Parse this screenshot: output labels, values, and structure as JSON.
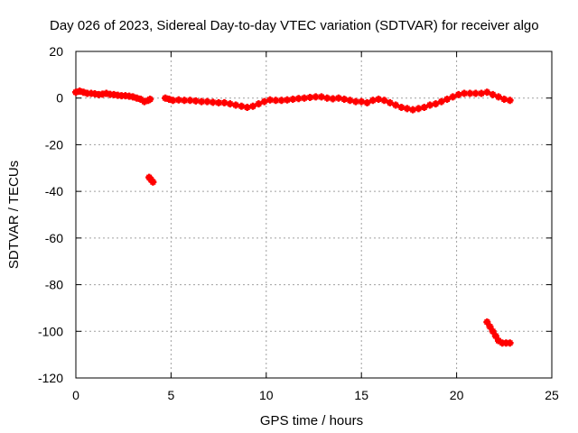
{
  "chart_data": {
    "type": "scatter",
    "title": "Day 026 of 2023, Sidereal Day-to-day VTEC variation (SDTVAR) for receiver algo",
    "xlabel": "GPS time / hours",
    "ylabel": "SDTVAR / TECUs",
    "xlim": [
      0,
      25
    ],
    "ylim": [
      -120,
      20
    ],
    "xticks": [
      0,
      5,
      10,
      15,
      20,
      25
    ],
    "yticks": [
      20,
      0,
      -20,
      -40,
      -60,
      -80,
      -100,
      -120
    ],
    "xtick_labels": [
      "0",
      "5",
      "10",
      "15",
      "20",
      "25"
    ],
    "ytick_labels": [
      "20",
      "0",
      "-20",
      "-40",
      "-60",
      "-80",
      "-100",
      "-120"
    ],
    "grid": true,
    "marker_color": "#ff0000",
    "series": [
      {
        "name": "SDTVAR",
        "points": [
          [
            0.0,
            2.5
          ],
          [
            0.2,
            3.0
          ],
          [
            0.4,
            2.5
          ],
          [
            0.6,
            2.0
          ],
          [
            0.8,
            2.0
          ],
          [
            1.0,
            1.8
          ],
          [
            1.2,
            1.5
          ],
          [
            1.4,
            1.7
          ],
          [
            1.6,
            2.0
          ],
          [
            1.8,
            1.6
          ],
          [
            2.0,
            1.5
          ],
          [
            2.2,
            1.2
          ],
          [
            2.4,
            1.0
          ],
          [
            2.6,
            1.0
          ],
          [
            2.8,
            0.8
          ],
          [
            3.0,
            0.5
          ],
          [
            3.2,
            0.0
          ],
          [
            3.4,
            -0.5
          ],
          [
            3.6,
            -1.5
          ],
          [
            3.8,
            -1.0
          ],
          [
            3.9,
            -0.5
          ],
          [
            4.7,
            0.0
          ],
          [
            4.9,
            -0.5
          ],
          [
            5.1,
            -1.0
          ],
          [
            5.4,
            -0.8
          ],
          [
            5.7,
            -1.0
          ],
          [
            6.0,
            -1.0
          ],
          [
            6.3,
            -1.2
          ],
          [
            6.6,
            -1.5
          ],
          [
            6.9,
            -1.5
          ],
          [
            7.2,
            -1.8
          ],
          [
            7.5,
            -2.0
          ],
          [
            7.8,
            -2.0
          ],
          [
            8.1,
            -2.5
          ],
          [
            8.4,
            -3.0
          ],
          [
            8.7,
            -3.5
          ],
          [
            9.0,
            -4.0
          ],
          [
            9.3,
            -3.5
          ],
          [
            9.6,
            -2.5
          ],
          [
            9.9,
            -1.5
          ],
          [
            10.2,
            -0.8
          ],
          [
            10.5,
            -1.0
          ],
          [
            10.8,
            -1.0
          ],
          [
            11.1,
            -0.8
          ],
          [
            11.4,
            -0.5
          ],
          [
            11.7,
            -0.2
          ],
          [
            12.0,
            0.0
          ],
          [
            12.3,
            0.3
          ],
          [
            12.6,
            0.5
          ],
          [
            12.9,
            0.5
          ],
          [
            13.2,
            0.0
          ],
          [
            13.5,
            -0.3
          ],
          [
            13.8,
            0.0
          ],
          [
            14.1,
            -0.5
          ],
          [
            14.4,
            -1.0
          ],
          [
            14.7,
            -1.5
          ],
          [
            15.0,
            -1.5
          ],
          [
            15.3,
            -2.0
          ],
          [
            15.6,
            -1.0
          ],
          [
            15.9,
            -0.5
          ],
          [
            16.2,
            -1.0
          ],
          [
            16.5,
            -2.0
          ],
          [
            16.8,
            -3.0
          ],
          [
            17.1,
            -4.0
          ],
          [
            17.4,
            -4.5
          ],
          [
            17.7,
            -5.0
          ],
          [
            18.0,
            -4.5
          ],
          [
            18.3,
            -4.0
          ],
          [
            18.6,
            -3.0
          ],
          [
            18.9,
            -2.5
          ],
          [
            19.2,
            -1.5
          ],
          [
            19.5,
            -0.5
          ],
          [
            19.8,
            0.5
          ],
          [
            20.1,
            1.5
          ],
          [
            20.4,
            2.0
          ],
          [
            20.7,
            2.0
          ],
          [
            21.0,
            2.0
          ],
          [
            21.3,
            2.0
          ],
          [
            21.6,
            2.5
          ],
          [
            21.9,
            1.5
          ],
          [
            22.2,
            0.5
          ],
          [
            22.5,
            -0.5
          ],
          [
            22.8,
            -1.0
          ],
          [
            3.85,
            -34
          ],
          [
            3.95,
            -35
          ],
          [
            4.05,
            -36
          ],
          [
            21.6,
            -96
          ],
          [
            21.75,
            -98
          ],
          [
            21.9,
            -100
          ],
          [
            22.05,
            -102
          ],
          [
            22.2,
            -104
          ],
          [
            22.4,
            -105
          ],
          [
            22.6,
            -105
          ],
          [
            22.8,
            -105
          ]
        ]
      }
    ]
  }
}
